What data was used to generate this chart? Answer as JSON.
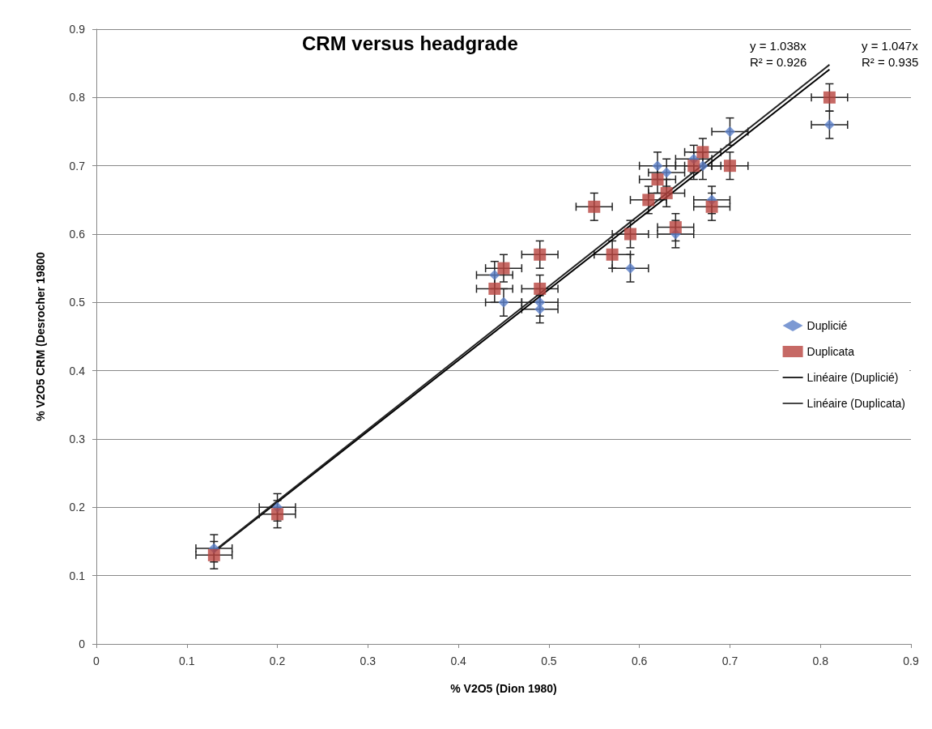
{
  "chart_data": {
    "type": "scatter",
    "title": "CRM versus headgrade",
    "xlabel": "% V2O5 (Dion 1980)",
    "ylabel": "% V2O5 CRM (Desrocher 19800",
    "xlim": [
      0,
      0.9
    ],
    "ylim": [
      0,
      0.9
    ],
    "xticks": [
      0,
      0.1,
      0.2,
      0.3,
      0.4,
      0.5,
      0.6,
      0.7,
      0.8,
      0.9
    ],
    "yticks": [
      0,
      0.1,
      0.2,
      0.3,
      0.4,
      0.5,
      0.6,
      0.7,
      0.8,
      0.9
    ],
    "grid": "y",
    "legend": "right",
    "series": [
      {
        "name": "Duplicié",
        "marker": "diamond",
        "color": "#5b80c8",
        "x": [
          0.13,
          0.2,
          0.44,
          0.45,
          0.49,
          0.49,
          0.59,
          0.62,
          0.63,
          0.64,
          0.66,
          0.67,
          0.68,
          0.7,
          0.81
        ],
        "values": [
          0.14,
          0.2,
          0.54,
          0.5,
          0.5,
          0.49,
          0.55,
          0.7,
          0.69,
          0.6,
          0.71,
          0.7,
          0.65,
          0.75,
          0.76
        ],
        "errors": [
          0.02,
          0.02,
          0.02,
          0.02,
          0.02,
          0.02,
          0.02,
          0.02,
          0.02,
          0.02,
          0.02,
          0.02,
          0.02,
          0.02,
          0.02
        ],
        "xerrors": [
          0.02,
          0.02,
          0.02,
          0.02,
          0.02,
          0.02,
          0.02,
          0.02,
          0.02,
          0.02,
          0.02,
          0.02,
          0.02,
          0.02,
          0.02
        ]
      },
      {
        "name": "Duplicata",
        "marker": "square",
        "color": "#b8433f",
        "x": [
          0.13,
          0.2,
          0.44,
          0.45,
          0.49,
          0.49,
          0.55,
          0.57,
          0.59,
          0.61,
          0.62,
          0.63,
          0.64,
          0.66,
          0.67,
          0.68,
          0.7,
          0.81
        ],
        "values": [
          0.13,
          0.19,
          0.52,
          0.55,
          0.57,
          0.52,
          0.64,
          0.57,
          0.6,
          0.65,
          0.68,
          0.66,
          0.61,
          0.7,
          0.72,
          0.64,
          0.7,
          0.8
        ],
        "errors": [
          0.02,
          0.02,
          0.02,
          0.02,
          0.02,
          0.02,
          0.02,
          0.02,
          0.02,
          0.02,
          0.02,
          0.02,
          0.02,
          0.02,
          0.02,
          0.02,
          0.02,
          0.02
        ],
        "xerrors": [
          0.02,
          0.02,
          0.02,
          0.02,
          0.02,
          0.02,
          0.02,
          0.02,
          0.02,
          0.02,
          0.02,
          0.02,
          0.02,
          0.02,
          0.02,
          0.02,
          0.02,
          0.02
        ]
      },
      {
        "name": "Linéaire (Duplicié)",
        "type": "line",
        "marker": "none",
        "color": "#000000",
        "x": [
          0.13,
          0.81
        ],
        "values": [
          0.135,
          0.841
        ]
      },
      {
        "name": "Linéaire (Duplicata)",
        "type": "line",
        "marker": "none",
        "color": "#222222",
        "x": [
          0.13,
          0.81
        ],
        "values": [
          0.136,
          0.848
        ]
      }
    ],
    "annotations": [
      "y = 1.038x\nR² = 0.926",
      "y = 1.047x\nR² = 0.935"
    ]
  }
}
